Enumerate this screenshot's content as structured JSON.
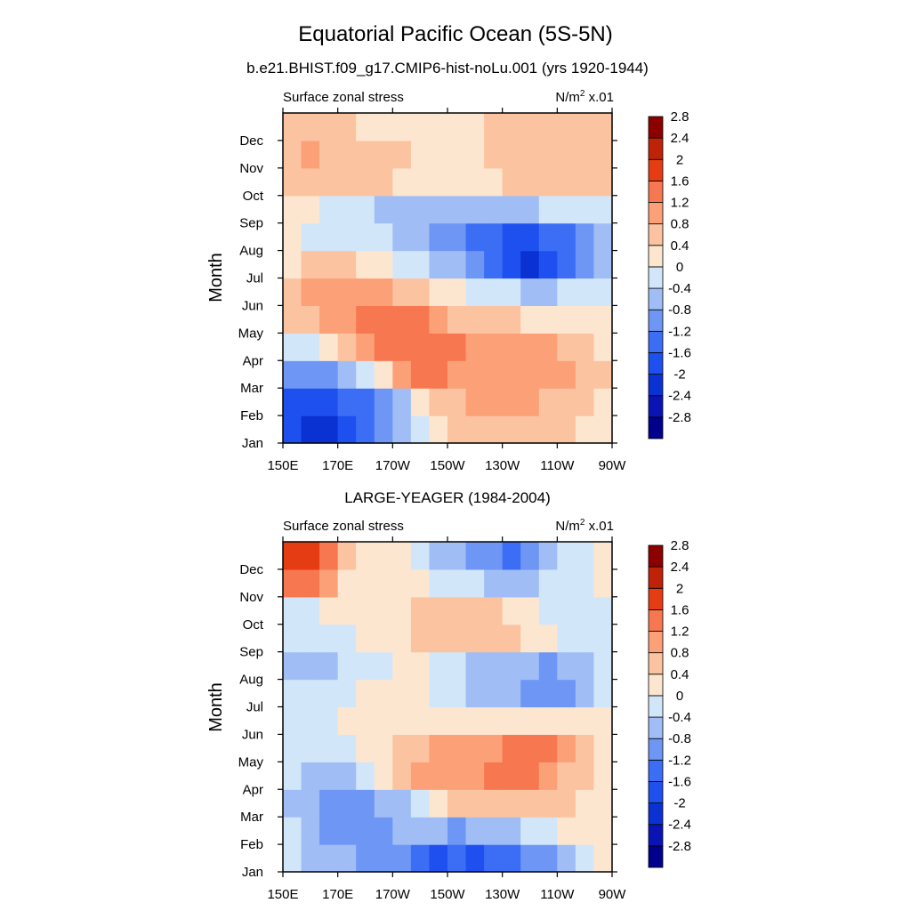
{
  "figure": {
    "title": "Equatorial Pacific Ocean (5S-5N)",
    "subtitle": "b.e21.BHIST.f09_g17.CMIP6-hist-noLu.001 (yrs 1920-1944)"
  },
  "colorscale": {
    "levels": [
      -2.8,
      -2.4,
      -2,
      -1.6,
      -1.2,
      -0.8,
      -0.4,
      0,
      0.4,
      0.8,
      1.2,
      1.6,
      2,
      2.4,
      2.8
    ],
    "level_labels": [
      "-2.8",
      "-2.4",
      "-2",
      "-1.6",
      "-1.2",
      "-0.8",
      "-0.4",
      "0",
      "0.4",
      "0.8",
      "1.2",
      "1.6",
      "2",
      "2.4",
      "2.8"
    ],
    "colors": [
      "#00008c",
      "#0a14b4",
      "#0a32d2",
      "#1e50f0",
      "#3c6ef5",
      "#6e96f5",
      "#a0bef5",
      "#d2e6fa",
      "#fde6d0",
      "#fcc3a0",
      "#fca078",
      "#f77850",
      "#e63c14",
      "#be2308",
      "#8c0000"
    ]
  },
  "chart_data": [
    {
      "type": "heatmap",
      "title": "",
      "left_label": "Surface zonal stress",
      "right_label": "N/m",
      "right_label_sup": "2",
      "right_label_suffix": " x.01",
      "xlabel": "",
      "ylabel": "Month",
      "x_ticks": [
        "150E",
        "170E",
        "170W",
        "150W",
        "130W",
        "110W",
        "90W"
      ],
      "y_ticks": [
        "Jan",
        "Feb",
        "Mar",
        "Apr",
        "May",
        "Jun",
        "Jul",
        "Aug",
        "Sep",
        "Oct",
        "Nov",
        "Dec"
      ],
      "rows_jan_to_dec": [
        [
          -1.9,
          -2.1,
          -2.2,
          -1.9,
          -1.5,
          -1.1,
          -0.7,
          -0.3,
          0.2,
          0.5,
          0.6,
          0.7,
          0.7,
          0.6,
          0.5,
          0.4,
          0.3,
          0.2
        ],
        [
          -1.7,
          -1.9,
          -1.8,
          -1.6,
          -1.3,
          -0.9,
          -0.5,
          0.0,
          0.4,
          0.7,
          0.8,
          0.8,
          0.8,
          0.8,
          0.7,
          0.6,
          0.4,
          0.3
        ],
        [
          -1.0,
          -1.1,
          -1.0,
          -0.8,
          -0.3,
          0.2,
          0.8,
          1.2,
          1.2,
          1.0,
          1.0,
          1.0,
          1.0,
          1.0,
          0.9,
          0.8,
          0.6,
          0.4
        ],
        [
          -0.3,
          -0.2,
          0.1,
          0.6,
          1.0,
          1.2,
          1.3,
          1.4,
          1.4,
          1.3,
          1.1,
          1.0,
          1.0,
          0.9,
          0.8,
          0.6,
          0.4,
          0.3
        ],
        [
          0.4,
          0.6,
          0.9,
          1.0,
          1.2,
          1.4,
          1.4,
          1.3,
          1.0,
          0.7,
          0.5,
          0.4,
          0.4,
          0.3,
          0.2,
          0.2,
          0.1,
          0.1
        ],
        [
          0.5,
          0.8,
          1.0,
          1.0,
          1.0,
          0.9,
          0.7,
          0.5,
          0.3,
          0.1,
          -0.1,
          -0.3,
          -0.4,
          -0.5,
          -0.5,
          -0.4,
          -0.3,
          -0.2
        ],
        [
          0.3,
          0.4,
          0.5,
          0.4,
          0.3,
          0.1,
          -0.1,
          -0.3,
          -0.5,
          -0.8,
          -1.1,
          -1.5,
          -1.9,
          -2.1,
          -2.0,
          -1.6,
          -1.0,
          -0.5
        ],
        [
          0.0,
          -0.1,
          -0.1,
          -0.2,
          -0.3,
          -0.4,
          -0.6,
          -0.8,
          -1.0,
          -1.2,
          -1.4,
          -1.6,
          -1.7,
          -1.7,
          -1.6,
          -1.3,
          -0.9,
          -0.5
        ],
        [
          0.1,
          0.0,
          -0.1,
          -0.2,
          -0.3,
          -0.5,
          -0.7,
          -0.8,
          -0.8,
          -0.7,
          -0.6,
          -0.5,
          -0.5,
          -0.5,
          -0.4,
          -0.3,
          -0.2,
          -0.1
        ],
        [
          0.5,
          0.6,
          0.6,
          0.6,
          0.6,
          0.5,
          0.3,
          0.1,
          0.0,
          0.0,
          0.1,
          0.2,
          0.4,
          0.5,
          0.6,
          0.6,
          0.6,
          0.6
        ],
        [
          0.6,
          0.8,
          0.7,
          0.6,
          0.6,
          0.5,
          0.4,
          0.3,
          0.2,
          0.2,
          0.3,
          0.4,
          0.6,
          0.7,
          0.7,
          0.7,
          0.7,
          0.7
        ],
        [
          0.5,
          0.5,
          0.4,
          0.4,
          0.3,
          0.2,
          0.2,
          0.1,
          0.1,
          0.1,
          0.2,
          0.4,
          0.5,
          0.6,
          0.6,
          0.6,
          0.6,
          0.6
        ]
      ],
      "cols": 18
    },
    {
      "type": "heatmap",
      "title": "LARGE-YEAGER (1984-2004)",
      "left_label": "Surface zonal stress",
      "right_label": "N/m",
      "right_label_sup": "2",
      "right_label_suffix": " x.01",
      "xlabel": "",
      "ylabel": "Month",
      "x_ticks": [
        "150E",
        "170E",
        "170W",
        "150W",
        "130W",
        "110W",
        "90W"
      ],
      "y_ticks": [
        "Jan",
        "Feb",
        "Mar",
        "Apr",
        "May",
        "Jun",
        "Jul",
        "Aug",
        "Sep",
        "Oct",
        "Nov",
        "Dec"
      ],
      "rows_jan_to_dec": [
        [
          -0.3,
          -0.5,
          -0.7,
          -0.8,
          -0.9,
          -1.0,
          -1.1,
          -1.5,
          -1.7,
          -1.5,
          -1.7,
          -1.6,
          -1.3,
          -1.1,
          -0.9,
          -0.6,
          -0.3,
          0.1
        ],
        [
          -0.4,
          -0.7,
          -1.0,
          -1.1,
          -1.2,
          -1.1,
          -0.8,
          -0.7,
          -0.8,
          -0.9,
          -0.8,
          -0.7,
          -0.5,
          -0.3,
          -0.1,
          0.1,
          0.2,
          0.3
        ],
        [
          -0.5,
          -0.8,
          -1.0,
          -1.2,
          -1.1,
          -0.8,
          -0.5,
          -0.2,
          0.2,
          0.4,
          0.5,
          0.5,
          0.7,
          0.6,
          0.5,
          0.4,
          0.3,
          0.3
        ],
        [
          -0.4,
          -0.6,
          -0.6,
          -0.5,
          -0.2,
          0.1,
          0.5,
          0.8,
          0.9,
          1.0,
          1.1,
          1.2,
          1.5,
          1.4,
          1.1,
          0.7,
          0.4,
          0.2
        ],
        [
          -0.3,
          -0.4,
          -0.3,
          -0.1,
          0.1,
          0.3,
          0.5,
          0.7,
          0.9,
          1.0,
          1.0,
          1.1,
          1.2,
          1.4,
          1.2,
          0.8,
          0.4,
          0.2
        ],
        [
          -0.2,
          -0.2,
          -0.1,
          0.0,
          0.1,
          0.2,
          0.2,
          0.3,
          0.3,
          0.3,
          0.3,
          0.3,
          0.3,
          0.3,
          0.2,
          0.1,
          0.0,
          0.0
        ],
        [
          -0.3,
          -0.3,
          -0.2,
          -0.1,
          0.0,
          0.1,
          0.1,
          0.0,
          -0.1,
          -0.3,
          -0.5,
          -0.7,
          -0.8,
          -1.0,
          -1.1,
          -1.0,
          -0.6,
          -0.2
        ],
        [
          -0.8,
          -0.7,
          -0.5,
          -0.3,
          -0.2,
          -0.1,
          0.0,
          0.1,
          -0.1,
          -0.3,
          -0.5,
          -0.6,
          -0.6,
          -0.8,
          -0.9,
          -0.8,
          -0.5,
          -0.2
        ],
        [
          -0.4,
          -0.3,
          -0.2,
          -0.1,
          0.1,
          0.2,
          0.3,
          0.4,
          0.5,
          0.5,
          0.6,
          0.7,
          0.5,
          0.2,
          0.0,
          -0.3,
          -0.4,
          -0.2
        ],
        [
          -0.2,
          -0.1,
          0.1,
          0.2,
          0.3,
          0.3,
          0.3,
          0.4,
          0.4,
          0.5,
          0.5,
          0.4,
          0.2,
          0.0,
          -0.2,
          -0.4,
          -0.3,
          -0.1
        ],
        [
          1.5,
          1.3,
          0.8,
          0.3,
          0.2,
          0.1,
          0.1,
          0.0,
          -0.1,
          -0.2,
          -0.4,
          -0.6,
          -0.7,
          -0.6,
          -0.4,
          -0.2,
          -0.1,
          0.1
        ],
        [
          1.6,
          1.8,
          1.2,
          0.5,
          0.2,
          0.1,
          0.0,
          -0.3,
          -0.5,
          -0.7,
          -0.9,
          -1.2,
          -1.4,
          -1.0,
          -0.6,
          -0.3,
          -0.1,
          0.1
        ]
      ],
      "cols": 18
    }
  ]
}
